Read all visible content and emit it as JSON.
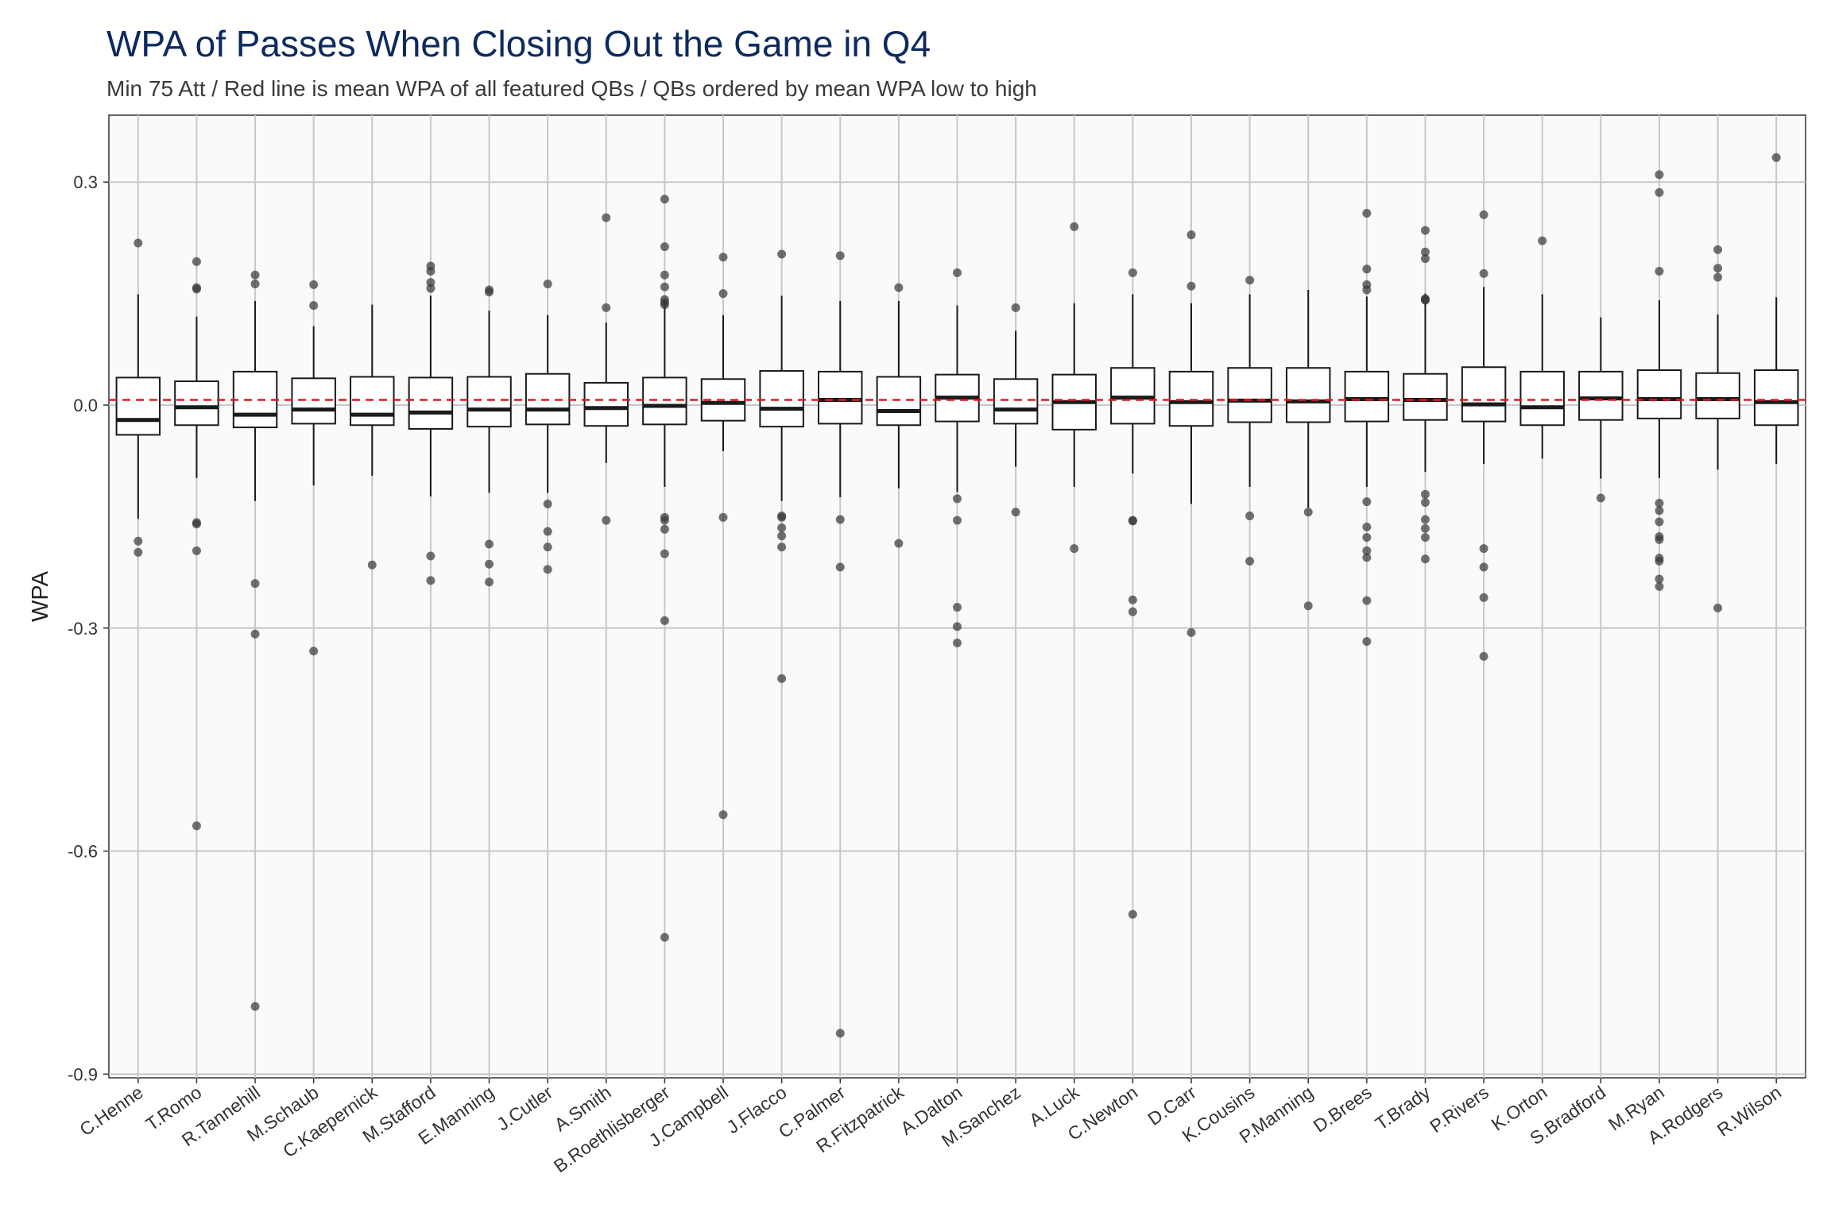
{
  "title": "WPA of Passes When Closing Out the Game in Q4",
  "subtitle": "Min 75 Att / Red line is mean WPA of all featured QBs / QBs ordered by mean WPA low to high",
  "colors": {
    "title": "#0c2a5e",
    "mean_line": "#e41a1c",
    "panel_bg": "#fafafa",
    "grid": "#c8c8c8",
    "box_stroke": "#1a1a1a",
    "outlier": "#3a3a3a"
  },
  "chart_data": {
    "type": "boxplot",
    "ylabel": "WPA",
    "xlabel": "",
    "ylim": [
      -0.905,
      0.39
    ],
    "yticks": [
      0.3,
      0.0,
      -0.3,
      -0.6,
      -0.9
    ],
    "ytick_labels": [
      "0.3",
      "0.0",
      "-0.3",
      "-0.6",
      "-0.9"
    ],
    "grid": true,
    "mean_line": 0.007,
    "categories": [
      "C.Henne",
      "T.Romo",
      "R.Tannehill",
      "M.Schaub",
      "C.Kaepernick",
      "M.Stafford",
      "E.Manning",
      "J.Cutler",
      "A.Smith",
      "B.Roethlisberger",
      "J.Campbell",
      "J.Flacco",
      "C.Palmer",
      "R.Fitzpatrick",
      "A.Dalton",
      "M.Sanchez",
      "A.Luck",
      "C.Newton",
      "D.Carr",
      "K.Cousins",
      "P.Manning",
      "D.Brees",
      "T.Brady",
      "P.Rivers",
      "K.Orton",
      "S.Bradford",
      "M.Ryan",
      "A.Rodgers",
      "R.Wilson"
    ],
    "boxes": [
      {
        "q1": -0.04,
        "median": -0.02,
        "q3": 0.037,
        "whisker_low": -0.153,
        "whisker_high": 0.149,
        "outliers": [
          0.218,
          -0.183,
          -0.198
        ]
      },
      {
        "q1": -0.027,
        "median": -0.003,
        "q3": 0.032,
        "whisker_low": -0.098,
        "whisker_high": 0.119,
        "outliers": [
          0.193,
          0.158,
          0.156,
          -0.158,
          -0.16,
          -0.196,
          -0.566
        ]
      },
      {
        "q1": -0.03,
        "median": -0.013,
        "q3": 0.045,
        "whisker_low": -0.129,
        "whisker_high": 0.14,
        "outliers": [
          0.175,
          0.163,
          -0.24,
          -0.308,
          -0.809
        ]
      },
      {
        "q1": -0.025,
        "median": -0.006,
        "q3": 0.036,
        "whisker_low": -0.108,
        "whisker_high": 0.106,
        "outliers": [
          0.162,
          0.134,
          -0.331
        ]
      },
      {
        "q1": -0.027,
        "median": -0.013,
        "q3": 0.038,
        "whisker_low": -0.095,
        "whisker_high": 0.135,
        "outliers": [
          -0.215
        ]
      },
      {
        "q1": -0.032,
        "median": -0.01,
        "q3": 0.037,
        "whisker_low": -0.123,
        "whisker_high": 0.147,
        "outliers": [
          0.187,
          0.18,
          0.165,
          0.157,
          -0.203,
          -0.236
        ]
      },
      {
        "q1": -0.029,
        "median": -0.006,
        "q3": 0.038,
        "whisker_low": -0.118,
        "whisker_high": 0.127,
        "outliers": [
          0.155,
          0.152,
          -0.187,
          -0.214,
          -0.238
        ]
      },
      {
        "q1": -0.026,
        "median": -0.006,
        "q3": 0.042,
        "whisker_low": -0.118,
        "whisker_high": 0.121,
        "outliers": [
          0.163,
          -0.133,
          -0.17,
          -0.191,
          -0.221
        ]
      },
      {
        "q1": -0.028,
        "median": -0.004,
        "q3": 0.03,
        "whisker_low": -0.078,
        "whisker_high": 0.111,
        "outliers": [
          0.252,
          0.131,
          -0.155
        ]
      },
      {
        "q1": -0.026,
        "median": -0.001,
        "q3": 0.037,
        "whisker_low": -0.11,
        "whisker_high": 0.141,
        "outliers": [
          0.277,
          0.213,
          0.175,
          0.159,
          0.142,
          0.138,
          0.135,
          -0.151,
          -0.155,
          -0.167,
          -0.2,
          -0.29,
          -0.716
        ]
      },
      {
        "q1": -0.021,
        "median": 0.003,
        "q3": 0.035,
        "whisker_low": -0.062,
        "whisker_high": 0.121,
        "outliers": [
          0.199,
          0.15,
          -0.151,
          -0.551
        ]
      },
      {
        "q1": -0.029,
        "median": -0.005,
        "q3": 0.046,
        "whisker_low": -0.129,
        "whisker_high": 0.147,
        "outliers": [
          0.203,
          -0.149,
          -0.151,
          -0.165,
          -0.176,
          -0.191,
          -0.368
        ]
      },
      {
        "q1": -0.025,
        "median": 0.007,
        "q3": 0.045,
        "whisker_low": -0.124,
        "whisker_high": 0.14,
        "outliers": [
          0.201,
          -0.154,
          -0.218,
          -0.845
        ]
      },
      {
        "q1": -0.027,
        "median": -0.008,
        "q3": 0.038,
        "whisker_low": -0.112,
        "whisker_high": 0.14,
        "outliers": [
          0.158,
          -0.186
        ]
      },
      {
        "q1": -0.022,
        "median": 0.01,
        "q3": 0.041,
        "whisker_low": -0.117,
        "whisker_high": 0.134,
        "outliers": [
          0.178,
          -0.126,
          -0.155,
          -0.272,
          -0.298,
          -0.32
        ]
      },
      {
        "q1": -0.025,
        "median": -0.006,
        "q3": 0.035,
        "whisker_low": -0.083,
        "whisker_high": 0.1,
        "outliers": [
          0.131,
          -0.144
        ]
      },
      {
        "q1": -0.033,
        "median": 0.004,
        "q3": 0.041,
        "whisker_low": -0.11,
        "whisker_high": 0.137,
        "outliers": [
          0.24,
          -0.193
        ]
      },
      {
        "q1": -0.025,
        "median": 0.01,
        "q3": 0.05,
        "whisker_low": -0.092,
        "whisker_high": 0.149,
        "outliers": [
          0.178,
          -0.155,
          -0.156,
          -0.262,
          -0.278,
          -0.685
        ]
      },
      {
        "q1": -0.028,
        "median": 0.004,
        "q3": 0.045,
        "whisker_low": -0.133,
        "whisker_high": 0.137,
        "outliers": [
          0.229,
          0.16,
          -0.306
        ]
      },
      {
        "q1": -0.023,
        "median": 0.006,
        "q3": 0.05,
        "whisker_low": -0.11,
        "whisker_high": 0.149,
        "outliers": [
          0.168,
          -0.149,
          -0.21
        ]
      },
      {
        "q1": -0.023,
        "median": 0.005,
        "q3": 0.05,
        "whisker_low": -0.138,
        "whisker_high": 0.155,
        "outliers": [
          -0.144,
          -0.27
        ]
      },
      {
        "q1": -0.022,
        "median": 0.008,
        "q3": 0.045,
        "whisker_low": -0.11,
        "whisker_high": 0.146,
        "outliers": [
          0.258,
          0.183,
          0.162,
          0.155,
          -0.13,
          -0.164,
          -0.178,
          -0.196,
          -0.205,
          -0.263,
          -0.318
        ]
      },
      {
        "q1": -0.02,
        "median": 0.007,
        "q3": 0.042,
        "whisker_low": -0.09,
        "whisker_high": 0.15,
        "outliers": [
          0.235,
          0.206,
          0.197,
          0.143,
          0.142,
          0.141,
          -0.12,
          -0.131,
          -0.154,
          -0.166,
          -0.178,
          -0.207
        ]
      },
      {
        "q1": -0.022,
        "median": 0.001,
        "q3": 0.051,
        "whisker_low": -0.079,
        "whisker_high": 0.159,
        "outliers": [
          0.256,
          0.177,
          -0.193,
          -0.218,
          -0.259,
          -0.338
        ]
      },
      {
        "q1": -0.027,
        "median": -0.003,
        "q3": 0.045,
        "whisker_low": -0.072,
        "whisker_high": 0.149,
        "outliers": [
          0.221
        ]
      },
      {
        "q1": -0.02,
        "median": 0.009,
        "q3": 0.045,
        "whisker_low": -0.099,
        "whisker_high": 0.118,
        "outliers": [
          -0.125
        ]
      },
      {
        "q1": -0.018,
        "median": 0.008,
        "q3": 0.047,
        "whisker_low": -0.098,
        "whisker_high": 0.141,
        "outliers": [
          0.31,
          0.286,
          0.18,
          -0.132,
          -0.142,
          -0.157,
          -0.177,
          -0.181,
          -0.206,
          -0.21,
          -0.234,
          -0.244
        ]
      },
      {
        "q1": -0.018,
        "median": 0.008,
        "q3": 0.043,
        "whisker_low": -0.087,
        "whisker_high": 0.122,
        "outliers": [
          0.209,
          0.184,
          0.172,
          -0.273
        ]
      },
      {
        "q1": -0.027,
        "median": 0.004,
        "q3": 0.047,
        "whisker_low": -0.079,
        "whisker_high": 0.145,
        "outliers": [
          0.333
        ]
      }
    ]
  }
}
